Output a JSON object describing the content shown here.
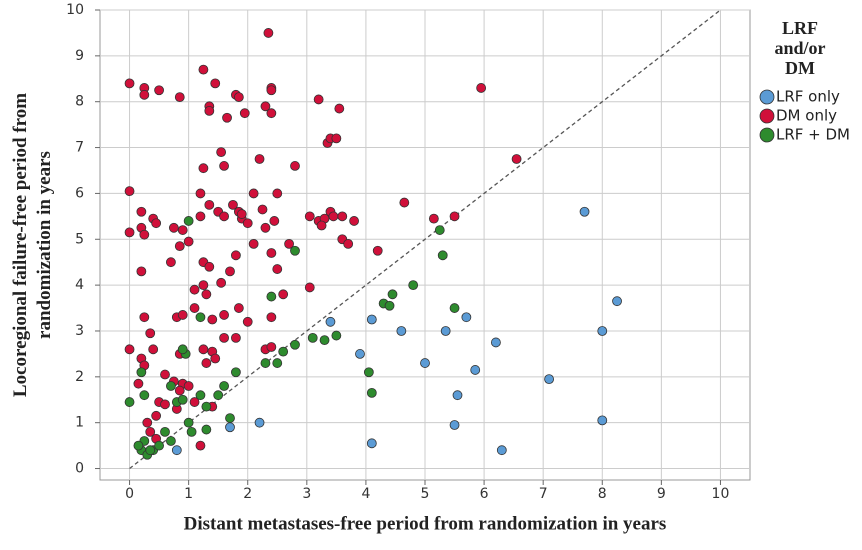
{
  "chart_data": {
    "type": "scatter",
    "x_label": "Distant metastases-free period from randomization in years",
    "y_label": [
      "Locoregional failure-free period from",
      "randomization in years"
    ],
    "xlim": [
      -0.5,
      10.5
    ],
    "ylim": [
      -0.25,
      10
    ],
    "xticks": [
      0,
      1,
      2,
      3,
      4,
      5,
      6,
      7,
      8,
      9,
      10
    ],
    "yticks": [
      0,
      1,
      2,
      3,
      4,
      5,
      6,
      7,
      8,
      9,
      10
    ],
    "grid": true,
    "legend_title": [
      "LRF",
      "and/or",
      "DM"
    ],
    "legend_position": "right",
    "reference_line": {
      "x": [
        0,
        10
      ],
      "y": [
        0,
        10
      ]
    },
    "series": [
      {
        "name": "LRF only",
        "color": "#5b9bd5",
        "x": [
          0.8,
          1.7,
          2.2,
          3.4,
          3.9,
          4.1,
          4.1,
          4.6,
          5.0,
          5.35,
          5.5,
          5.55,
          5.7,
          5.85,
          6.2,
          6.3,
          7.1,
          7.7,
          8.0,
          8.0,
          8.25
        ],
        "y": [
          0.4,
          0.9,
          1.0,
          3.2,
          2.5,
          3.25,
          0.55,
          3.0,
          2.3,
          3.0,
          0.95,
          1.6,
          3.3,
          2.15,
          2.75,
          0.4,
          1.95,
          5.6,
          3.0,
          1.05,
          3.65
        ]
      },
      {
        "name": "DM only",
        "color": "#d0103a",
        "x": [
          0,
          0.25,
          0.25,
          0.5,
          0.85,
          1.25,
          1.45,
          1.35,
          1.35,
          1.8,
          1.85,
          1.65,
          1.95,
          2.3,
          2.4,
          2.4,
          2.4,
          2.35,
          3.2,
          3.35,
          3.4,
          3.55,
          3.5,
          5.95,
          2.8,
          2.2,
          1.55,
          1.6,
          1.25,
          0,
          0.2,
          0.2,
          0.25,
          0,
          0.4,
          0.45,
          0.75,
          0.9,
          1.2,
          1.2,
          1.35,
          1.5,
          1.6,
          1.75,
          1.85,
          1.9,
          2.1,
          2.25,
          2.5,
          2.45,
          2.3,
          3.05,
          3.2,
          3.3,
          3.4,
          3.6,
          3.8,
          3.6,
          3.7,
          4.65,
          5.15,
          5.5,
          6.55,
          0.2,
          0.7,
          0.85,
          1.0,
          1.25,
          1.35,
          1.25,
          1.1,
          1.3,
          1.7,
          1.8,
          2.1,
          2.4,
          2.5,
          2.7,
          3.05,
          4.2,
          0.25,
          0.35,
          0.4,
          0.8,
          0.9,
          1.1,
          1.4,
          1.6,
          1.85,
          2.0,
          2.4,
          2.6,
          0,
          0.2,
          0.25,
          0.6,
          0.85,
          1.25,
          1.4,
          1.3,
          1.6,
          2.3,
          2.4,
          0.15,
          0.5,
          0.75,
          0.9,
          0.85,
          0.8,
          1.1,
          1.4,
          0.3,
          0.35,
          0.45,
          0.45,
          1.2,
          1.45,
          1.8,
          1.55,
          1.9,
          2.0,
          3.25,
          3.45,
          0.6,
          1.0
        ],
        "y": [
          8.4,
          8.3,
          8.15,
          8.25,
          8.1,
          8.7,
          8.4,
          7.9,
          7.8,
          8.15,
          8.1,
          7.65,
          7.75,
          7.9,
          8.3,
          8.25,
          7.75,
          9.5,
          8.05,
          7.1,
          7.2,
          7.85,
          7.2,
          8.3,
          6.6,
          6.75,
          6.9,
          6.6,
          6.55,
          6.05,
          5.6,
          5.25,
          5.1,
          5.15,
          5.45,
          5.35,
          5.25,
          5.2,
          6.0,
          5.5,
          5.75,
          5.6,
          5.5,
          5.75,
          5.6,
          5.45,
          6.0,
          5.65,
          6.0,
          5.4,
          5.25,
          5.5,
          5.4,
          5.45,
          5.6,
          5.5,
          5.4,
          5.0,
          4.9,
          5.8,
          5.45,
          5.5,
          6.75,
          4.3,
          4.5,
          4.85,
          4.95,
          4.5,
          4.4,
          4.0,
          3.9,
          3.8,
          4.3,
          4.65,
          4.9,
          4.7,
          4.35,
          4.9,
          3.95,
          4.75,
          3.3,
          2.95,
          2.6,
          3.3,
          3.35,
          3.5,
          3.25,
          3.35,
          3.5,
          3.2,
          3.3,
          3.8,
          2.6,
          2.4,
          2.25,
          2.05,
          2.5,
          2.6,
          2.55,
          2.3,
          2.85,
          2.6,
          2.65,
          1.85,
          1.45,
          1.9,
          1.85,
          1.7,
          1.3,
          1.45,
          1.35,
          1.0,
          0.8,
          0.65,
          1.15,
          0.5,
          2.4,
          2.85,
          4.05,
          5.55,
          5.35,
          5.3,
          5.5,
          1.4,
          1.8
        ]
      },
      {
        "name": "LRF + DM",
        "color": "#2e8b2e",
        "x": [
          0,
          0.2,
          0.25,
          0.3,
          0.2,
          0.25,
          0.4,
          0.5,
          0.6,
          0.7,
          0.8,
          0.9,
          0.95,
          1.0,
          1.05,
          1.0,
          1.2,
          1.3,
          1.3,
          1.5,
          1.6,
          1.7,
          1.8,
          1.2,
          2.3,
          2.4,
          2.5,
          2.6,
          2.8,
          2.8,
          3.1,
          3.3,
          3.5,
          4.05,
          4.1,
          4.3,
          4.4,
          4.45,
          4.8,
          5.25,
          5.3,
          5.5,
          0.15,
          0.35,
          0.7,
          0.9
        ],
        "y": [
          1.45,
          0.4,
          0.6,
          0.3,
          2.1,
          1.6,
          0.4,
          0.5,
          0.8,
          0.6,
          1.45,
          1.5,
          2.5,
          1.0,
          0.8,
          5.4,
          1.6,
          1.35,
          0.85,
          1.6,
          1.8,
          1.1,
          2.1,
          3.3,
          2.3,
          3.75,
          2.3,
          2.55,
          2.7,
          4.75,
          2.85,
          2.8,
          2.9,
          2.1,
          1.65,
          3.6,
          3.55,
          3.8,
          4.0,
          5.2,
          4.65,
          3.5,
          0.5,
          0.4,
          1.8,
          2.6
        ]
      }
    ]
  }
}
